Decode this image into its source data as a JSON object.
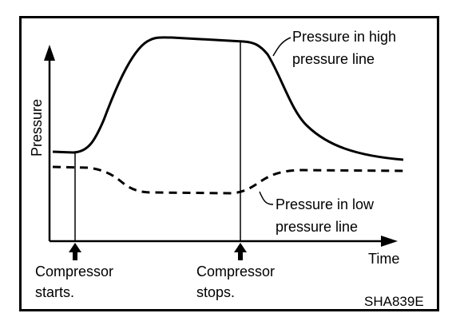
{
  "diagram": {
    "y_axis_label": "Pressure",
    "x_axis_label": "Time",
    "high_line_label": [
      "Pressure in high",
      "pressure line"
    ],
    "low_line_label": [
      "Pressure in low",
      "pressure line"
    ],
    "event_start": [
      "Compressor",
      "starts."
    ],
    "event_stop": [
      "Compressor",
      "stops."
    ],
    "figure_code": "SHA839E"
  }
}
